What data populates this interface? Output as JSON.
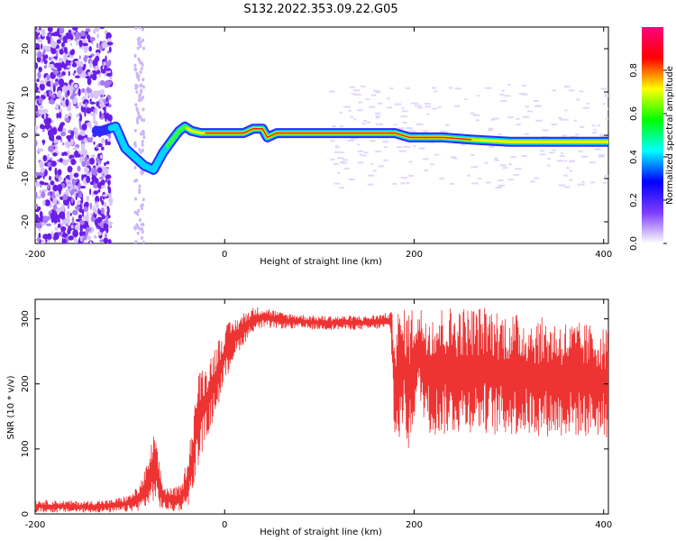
{
  "title": "S132.2022.353.09.22.G05",
  "chart_data": [
    {
      "type": "heatmap",
      "xlabel": "Height of straight line (km)",
      "ylabel": "Frequency (Hz)",
      "xlim": [
        -200,
        405
      ],
      "ylim": [
        -25,
        25
      ],
      "xticks": [
        "-200",
        "0",
        "200",
        "400"
      ],
      "xtick_values": [
        -200,
        0,
        200,
        400
      ],
      "yticks": [
        "-20",
        "-10",
        "0",
        "10",
        "20"
      ],
      "ytick_values": [
        -20,
        -10,
        0,
        10,
        20
      ],
      "colorbar": {
        "label": "Normalized spectral amplitude",
        "range": [
          0,
          1
        ],
        "ticks": [
          "0.0",
          "0.2",
          "0.4",
          "0.6",
          "0.8"
        ],
        "tick_values": [
          0,
          0.2,
          0.4,
          0.6,
          0.8
        ],
        "colormap": [
          "#ffffff",
          "#7d3cff",
          "#0000ff",
          "#00ffff",
          "#00ff00",
          "#ffff00",
          "#ff0000",
          "#ff0080"
        ]
      },
      "ridge": {
        "x": [
          -130,
          -115,
          -105,
          -95,
          -85,
          -75,
          -65,
          -55,
          -48,
          -42,
          -35,
          -25,
          -10,
          0,
          20,
          30,
          40,
          45,
          55,
          80,
          120,
          160,
          180,
          195,
          210,
          230,
          260,
          300,
          350,
          405
        ],
        "y": [
          1,
          2,
          -3,
          -5,
          -7,
          -8,
          -4,
          -1,
          1,
          2,
          1,
          0.5,
          0.5,
          0.5,
          0.5,
          1.5,
          1.5,
          -0.5,
          0.5,
          0.5,
          0.5,
          0.5,
          0.5,
          -0.5,
          -0.5,
          -0.5,
          -1,
          -1.5,
          -1.5,
          -1.5
        ]
      },
      "grid": false
    },
    {
      "type": "line",
      "xlabel": "Height of straight line (km)",
      "ylabel": "SNR (10 * v/v)",
      "xlim": [
        -200,
        405
      ],
      "ylim": [
        0,
        330
      ],
      "xticks": [
        "-200",
        "0",
        "200",
        "400"
      ],
      "xtick_values": [
        -200,
        0,
        200,
        400
      ],
      "yticks": [
        "0",
        "100",
        "200",
        "300"
      ],
      "ytick_values": [
        0,
        100,
        200,
        300
      ],
      "color": "#ee3333",
      "series": [
        {
          "envelope_x": [
            -200,
            -150,
            -120,
            -100,
            -90,
            -80,
            -75,
            -70,
            -65,
            -55,
            -45,
            -40,
            -35,
            -30,
            -25,
            -20,
            -10,
            0,
            10,
            20,
            25,
            30,
            40,
            60,
            100,
            150,
            175,
            180,
            185,
            190,
            195,
            200,
            205,
            215,
            220,
            230,
            260,
            275,
            280,
            300,
            350,
            400,
            405
          ],
          "upper": [
            22,
            20,
            22,
            30,
            45,
            85,
            130,
            90,
            45,
            40,
            45,
            90,
            130,
            200,
            230,
            230,
            260,
            290,
            300,
            310,
            315,
            318,
            320,
            310,
            305,
            305,
            310,
            315,
            315,
            315,
            320,
            320,
            320,
            318,
            318,
            320,
            320,
            320,
            320,
            310,
            300,
            290,
            285
          ],
          "lower": [
            2,
            2,
            2,
            3,
            5,
            10,
            20,
            10,
            5,
            3,
            5,
            10,
            20,
            60,
            90,
            110,
            150,
            200,
            240,
            260,
            270,
            280,
            285,
            285,
            283,
            283,
            285,
            85,
            110,
            140,
            75,
            150,
            170,
            125,
            120,
            120,
            125,
            125,
            120,
            120,
            118,
            118,
            115
          ]
        }
      ],
      "grid": false
    }
  ]
}
